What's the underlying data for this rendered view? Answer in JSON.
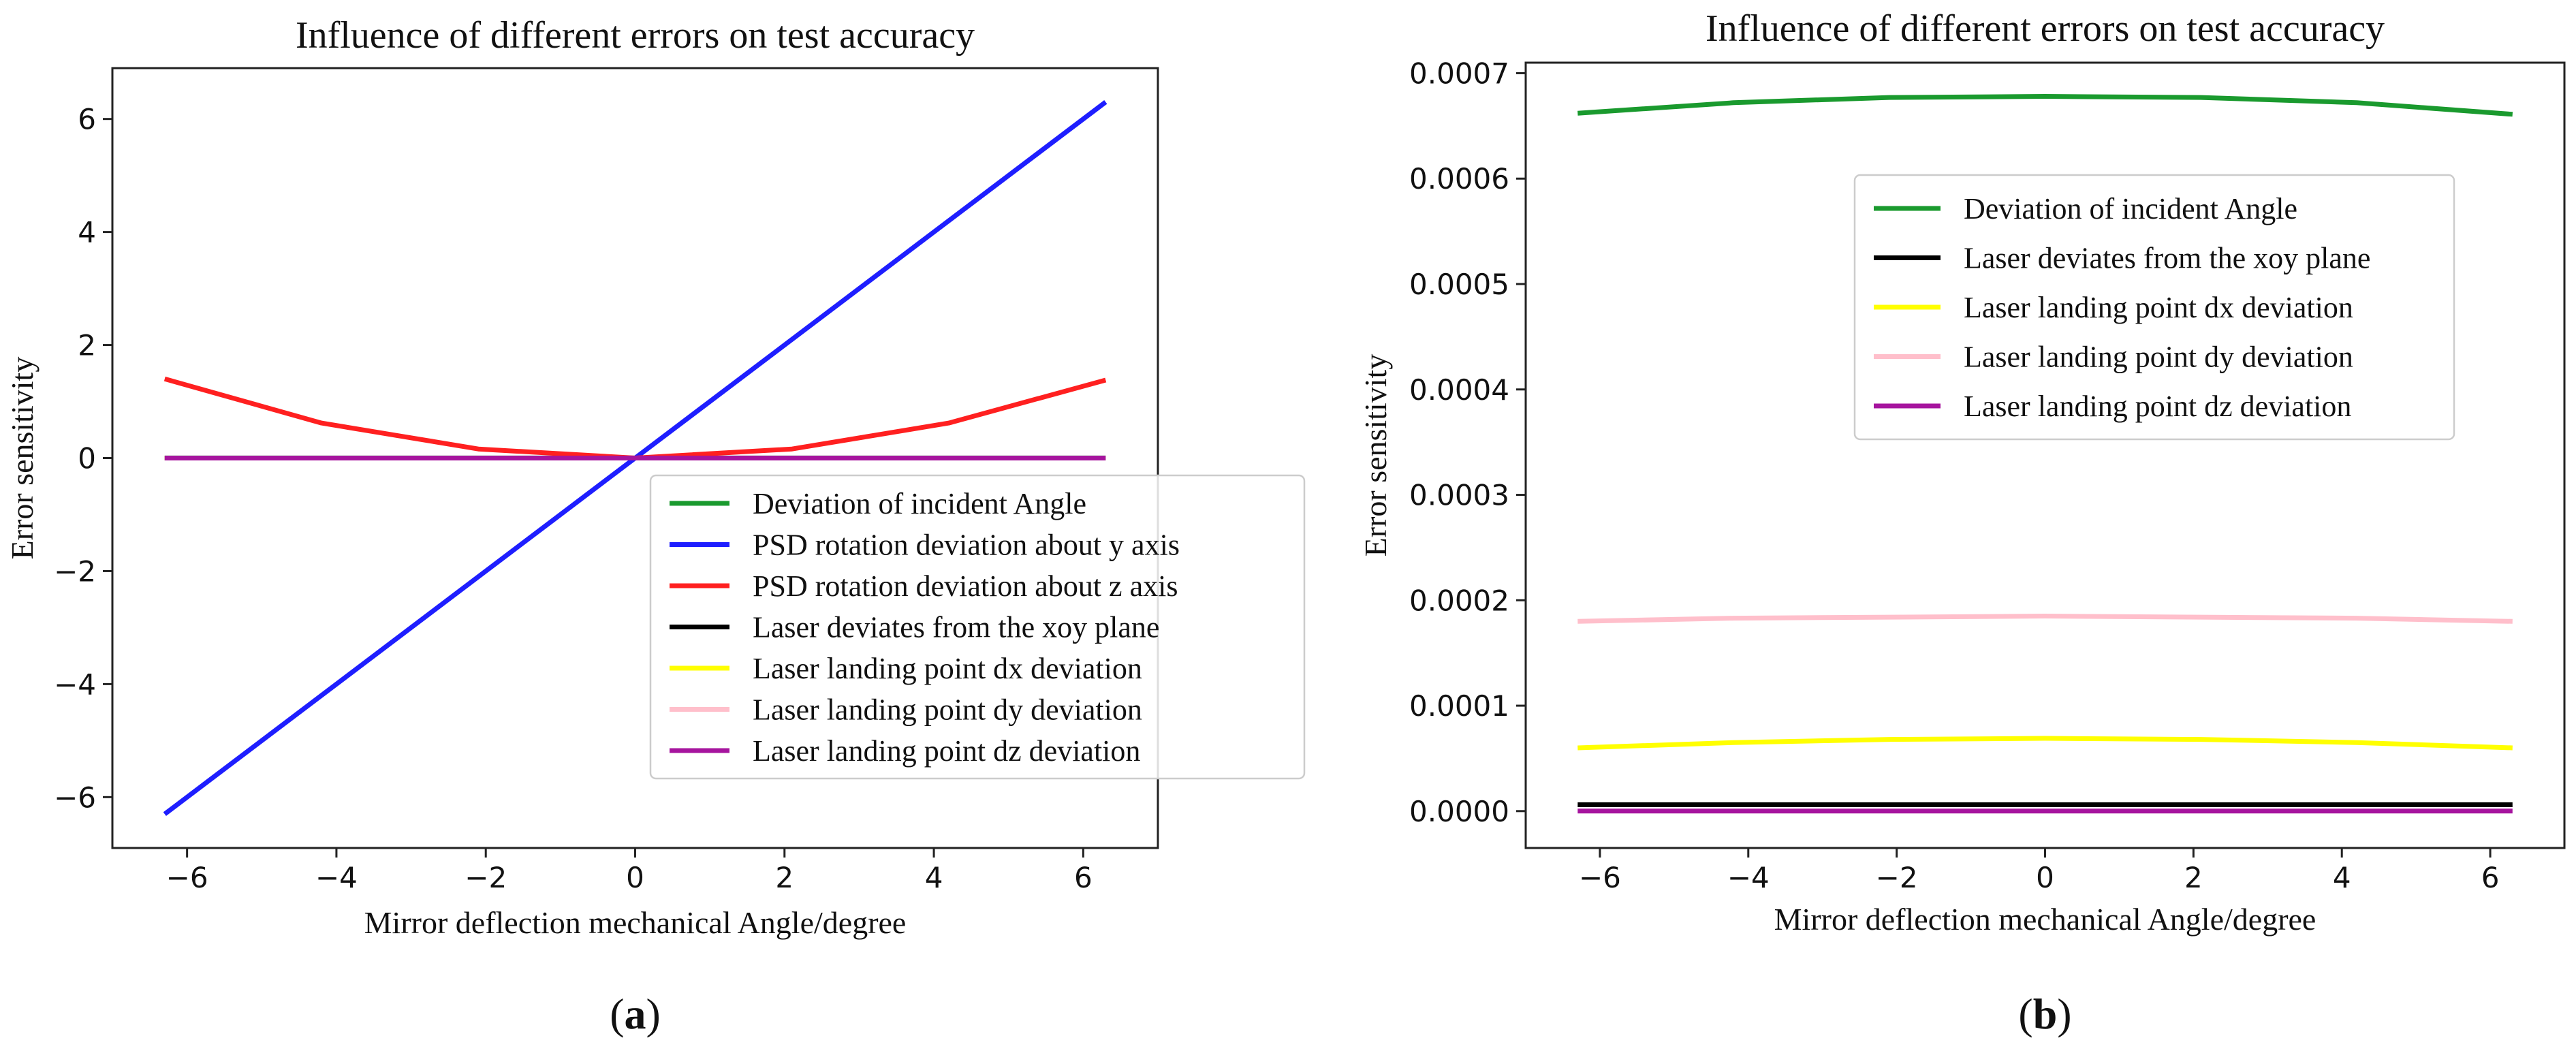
{
  "chart_data": [
    {
      "type": "line",
      "panel": "(a)",
      "panel_letter": "a",
      "title": "Influence of different errors on test accuracy",
      "xlabel": "Mirror deflection mechanical Angle/degree",
      "ylabel": "Error sensitivity",
      "xlim": [
        -7.0,
        7.0
      ],
      "ylim": [
        -6.9,
        6.9
      ],
      "xticks": [
        -6,
        -4,
        -2,
        0,
        2,
        4,
        6
      ],
      "xtick_labels": [
        "−6",
        "−4",
        "−2",
        "0",
        "2",
        "4",
        "6"
      ],
      "yticks": [
        -6,
        -4,
        -2,
        0,
        2,
        4,
        6
      ],
      "ytick_labels": [
        "−6",
        "−4",
        "−2",
        "0",
        "2",
        "4",
        "6"
      ],
      "legend_position": "lower-right",
      "series": [
        {
          "name": "Deviation of incident Angle",
          "color": "#1a9a2e",
          "x": [
            -6.3,
            0,
            6.3
          ],
          "y": [
            0.0007,
            0.0007,
            0.0007
          ]
        },
        {
          "name": "PSD rotation deviation about y axis",
          "color": "#1e1eff",
          "x": [
            -6.3,
            0,
            6.3
          ],
          "y": [
            -6.3,
            0,
            6.3
          ]
        },
        {
          "name": "PSD rotation deviation about z axis",
          "color": "#ff2020",
          "x": [
            -6.3,
            -4.2,
            -2.1,
            0,
            2.1,
            4.2,
            6.3
          ],
          "y": [
            1.4,
            0.62,
            0.16,
            0,
            0.16,
            0.62,
            1.38
          ]
        },
        {
          "name": "Laser deviates from the xoy plane",
          "color": "#000000",
          "x": [
            -6.3,
            0,
            6.3
          ],
          "y": [
            0.0,
            0.0,
            0.0
          ]
        },
        {
          "name": "Laser landing point dx deviation",
          "color": "#ffff00",
          "x": [
            -6.3,
            0,
            6.3
          ],
          "y": [
            6e-05,
            7e-05,
            6e-05
          ]
        },
        {
          "name": "Laser landing point dy deviation",
          "color": "#ffbfcb",
          "x": [
            -6.3,
            0,
            6.3
          ],
          "y": [
            0.00018,
            0.000185,
            0.00018
          ]
        },
        {
          "name": "Laser landing point dz deviation",
          "color": "#a6149e",
          "x": [
            -6.3,
            0,
            6.3
          ],
          "y": [
            0.0,
            0.0,
            0.0
          ]
        }
      ]
    },
    {
      "type": "line",
      "panel": "(b)",
      "panel_letter": "b",
      "title": "Influence of different errors on test accuracy",
      "xlabel": "Mirror deflection mechanical Angle/degree",
      "ylabel": "Error sensitivity",
      "xlim": [
        -7.0,
        7.0
      ],
      "ylim": [
        -3.5e-05,
        0.00071
      ],
      "xticks": [
        -6,
        -4,
        -2,
        0,
        2,
        4,
        6
      ],
      "xtick_labels": [
        "−6",
        "−4",
        "−2",
        "0",
        "2",
        "4",
        "6"
      ],
      "yticks": [
        0,
        0.0001,
        0.0002,
        0.0003,
        0.0004,
        0.0005,
        0.0006,
        0.0007
      ],
      "ytick_labels": [
        "0.0000",
        "0.0001",
        "0.0002",
        "0.0003",
        "0.0004",
        "0.0005",
        "0.0006",
        "0.0007"
      ],
      "legend_position": "upper-center",
      "series": [
        {
          "name": "Deviation of incident Angle",
          "color": "#1a9a2e",
          "x": [
            -6.3,
            -4.2,
            -2.1,
            0,
            2.1,
            4.2,
            6.3
          ],
          "y": [
            0.000662,
            0.000672,
            0.000677,
            0.000678,
            0.000677,
            0.000672,
            0.000661
          ]
        },
        {
          "name": "Laser deviates from the xoy plane",
          "color": "#000000",
          "x": [
            -6.3,
            0,
            6.3
          ],
          "y": [
            6e-06,
            6e-06,
            6e-06
          ]
        },
        {
          "name": "Laser landing point dx deviation",
          "color": "#ffff00",
          "x": [
            -6.3,
            -4.2,
            -2.1,
            0,
            2.1,
            4.2,
            6.3
          ],
          "y": [
            6e-05,
            6.5e-05,
            6.8e-05,
            6.9e-05,
            6.8e-05,
            6.5e-05,
            6e-05
          ]
        },
        {
          "name": "Laser landing point dy deviation",
          "color": "#ffbfcb",
          "x": [
            -6.3,
            -4.2,
            -2.1,
            0,
            2.1,
            4.2,
            6.3
          ],
          "y": [
            0.00018,
            0.000183,
            0.000184,
            0.000185,
            0.000184,
            0.000183,
            0.00018
          ]
        },
        {
          "name": "Laser landing point dz deviation",
          "color": "#a6149e",
          "x": [
            -6.3,
            0,
            6.3
          ],
          "y": [
            0.0,
            0.0,
            0.0
          ]
        }
      ]
    }
  ]
}
